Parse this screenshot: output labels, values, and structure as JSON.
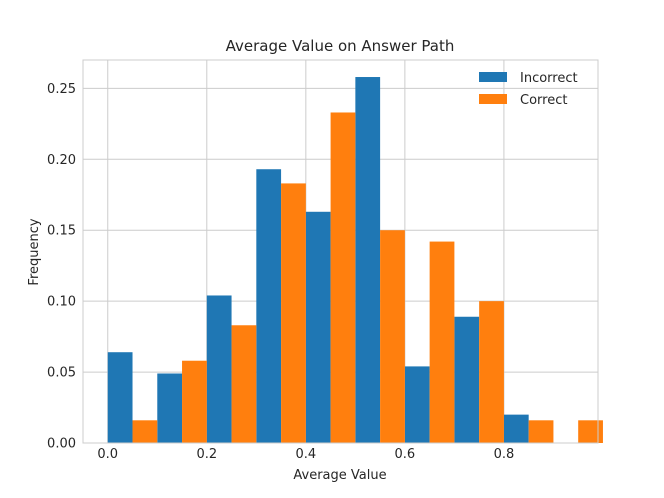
{
  "chart_data": {
    "type": "bar",
    "title": "Average Value on Answer Path",
    "xlabel": "Average Value",
    "ylabel": "Frequency",
    "bin_starts": [
      0.0,
      0.1,
      0.2,
      0.3,
      0.4,
      0.5,
      0.6,
      0.7,
      0.8,
      0.9
    ],
    "xlim": [
      -0.05,
      0.99
    ],
    "ylim": [
      0,
      0.27
    ],
    "xticks": [
      0.0,
      0.2,
      0.4,
      0.6,
      0.8
    ],
    "xtick_labels": [
      "0.0",
      "0.2",
      "0.4",
      "0.6",
      "0.8"
    ],
    "yticks": [
      0.0,
      0.05,
      0.1,
      0.15,
      0.2,
      0.25
    ],
    "ytick_labels": [
      "0.00",
      "0.05",
      "0.10",
      "0.15",
      "0.20",
      "0.25"
    ],
    "grid": true,
    "legend_position": "top-right",
    "series": [
      {
        "name": "Incorrect",
        "color": "#1f77b4",
        "values": [
          0.064,
          0.049,
          0.104,
          0.193,
          0.163,
          0.258,
          0.054,
          0.089,
          0.02,
          0.0
        ]
      },
      {
        "name": "Correct",
        "color": "#ff7f0e",
        "values": [
          0.016,
          0.058,
          0.083,
          0.183,
          0.233,
          0.15,
          0.142,
          0.1,
          0.016,
          0.016
        ]
      }
    ]
  }
}
